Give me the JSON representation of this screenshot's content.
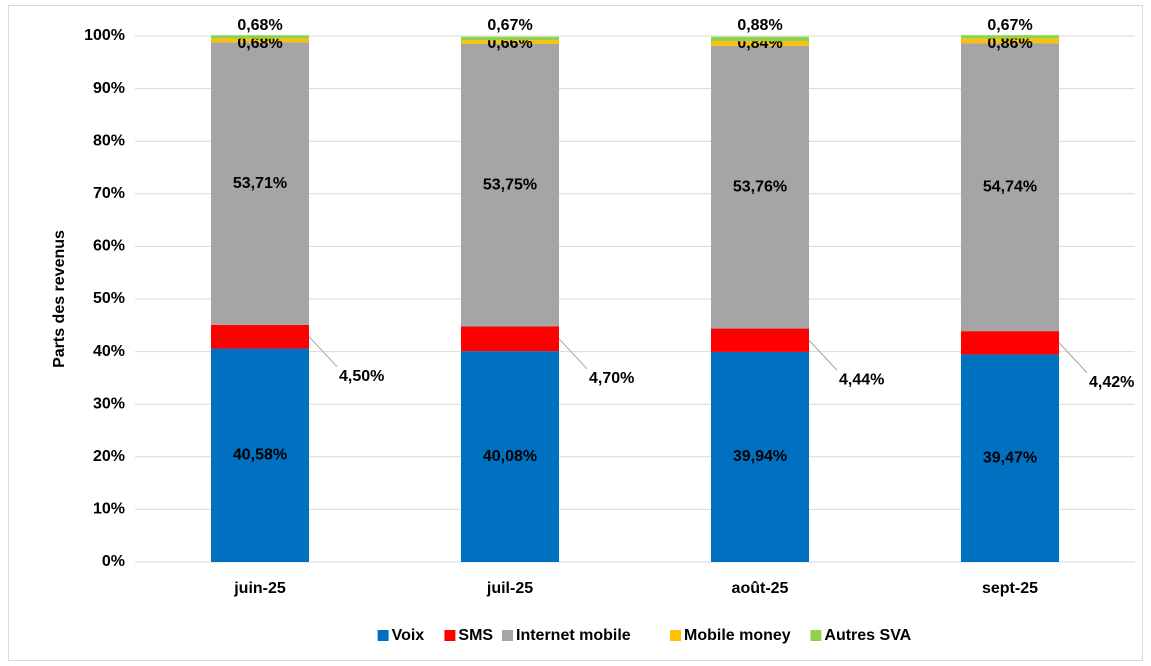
{
  "chart_data": {
    "type": "stacked_bar",
    "y_axis_label": "Parts des revenus",
    "categories": [
      "juin-25",
      "juil-25",
      "août-25",
      "sept-25"
    ],
    "series": [
      {
        "name": "Voix",
        "color": "#0070c0",
        "values": [
          40.58,
          40.08,
          39.94,
          39.47
        ],
        "value_labels": [
          "40,58%",
          "40,08%",
          "39,94%",
          "39,47%"
        ]
      },
      {
        "name": "SMS",
        "color": "#ff0000",
        "values": [
          4.5,
          4.7,
          4.44,
          4.42
        ],
        "value_labels": [
          "4,50%",
          "4,70%",
          "4,44%",
          "4,42%"
        ]
      },
      {
        "name": "Internet mobile",
        "color": "#a5a5a5",
        "values": [
          53.71,
          53.75,
          53.76,
          54.74
        ],
        "value_labels": [
          "53,71%",
          "53,75%",
          "53,76%",
          "54,74%"
        ]
      },
      {
        "name": "Mobile money",
        "color": "#ffc000",
        "values": [
          0.68,
          0.66,
          0.84,
          0.86
        ],
        "value_labels": [
          "0,68%",
          "0,66%",
          "0,84%",
          "0,86%"
        ]
      },
      {
        "name": "Autres SVA",
        "color": "#92d050",
        "values": [
          0.68,
          0.67,
          0.88,
          0.67
        ],
        "value_labels": [
          "0,68%",
          "0,67%",
          "0,88%",
          "0,67%"
        ]
      }
    ],
    "ylim": [
      0,
      100
    ],
    "yticks": [
      {
        "value": 0,
        "label": "0%"
      },
      {
        "value": 10,
        "label": "10%"
      },
      {
        "value": 20,
        "label": "20%"
      },
      {
        "value": 30,
        "label": "30%"
      },
      {
        "value": 40,
        "label": "40%"
      },
      {
        "value": 50,
        "label": "50%"
      },
      {
        "value": 60,
        "label": "60%"
      },
      {
        "value": 70,
        "label": "70%"
      },
      {
        "value": 80,
        "label": "80%"
      },
      {
        "value": 90,
        "label": "90%"
      },
      {
        "value": 100,
        "label": "100%"
      }
    ],
    "grid": true,
    "legend": "bottom"
  }
}
